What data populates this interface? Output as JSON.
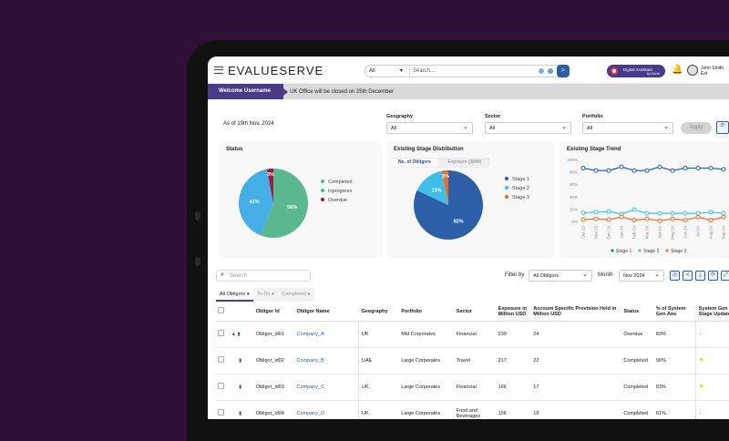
{
  "header": {
    "logo": "EVALUESERVE",
    "search_scope": "All",
    "search_placeholder": "Search...",
    "assistant_label": "Digital Assistant",
    "assistant_sub": "by Genie",
    "user_name": "John Smith",
    "user_sub": "Ext"
  },
  "banner": {
    "welcome": "Welcome Username",
    "notice": "UK Office will be closed on 25th December"
  },
  "filters": {
    "as_of": "As of 19th Nov, 2024",
    "geography_label": "Geography",
    "geography": "All",
    "sector_label": "Sector",
    "sector": "All",
    "portfolio_label": "Portfolio",
    "portfolio": "All",
    "apply": "Apply"
  },
  "colors": {
    "completed": "#5cb88f",
    "inprogress": "#45b0e5",
    "overdue": "#a3173f",
    "stage1": "#2d5fa8",
    "stage2": "#3dbfe8",
    "stage3": "#f06a25"
  },
  "chart_data": [
    {
      "type": "pie",
      "title": "Status",
      "labels": [
        "Completed",
        "Inprogress",
        "Overdue"
      ],
      "values": [
        56,
        41,
        3
      ]
    },
    {
      "type": "pie",
      "title": "Existing Stage Distribution",
      "toggle": [
        "No. of Obligors",
        "Exposure ($MM)"
      ],
      "labels": [
        "Stage 1",
        "Stage 2",
        "Stage 3"
      ],
      "values": [
        82,
        15,
        3
      ]
    },
    {
      "type": "line",
      "title": "Existing Stage Trend",
      "x": [
        "Oct-23",
        "Nov-23",
        "Dec-23",
        "Jan-24",
        "Feb-24",
        "Mar-24",
        "Apr-24",
        "May-24",
        "Jun-24",
        "Jul-24",
        "Aug-24",
        "Sep-24"
      ],
      "yticks": [
        "0%",
        "20%",
        "40%",
        "60%",
        "80%",
        "100%"
      ],
      "ylim": [
        0,
        100
      ],
      "series": [
        {
          "name": "Stage 1",
          "values": [
            86,
            82,
            82,
            88,
            82,
            82,
            88,
            82,
            86,
            86,
            86,
            84
          ]
        },
        {
          "name": "Stage 2",
          "values": [
            14,
            15,
            16,
            12,
            19,
            13,
            13,
            13,
            13,
            13,
            15,
            13
          ]
        },
        {
          "name": "Stage 3",
          "values": [
            3,
            4,
            3,
            7,
            2,
            4,
            1,
            4,
            2,
            7,
            2,
            7
          ]
        }
      ]
    }
  ],
  "toolbar": {
    "search_placeholder": "Search",
    "filter_label": "Filter by",
    "filter_value": "All Obligors",
    "month_label": "Month",
    "month_value": "Nov 2024"
  },
  "tabs": [
    "All Obligors",
    "To Do",
    "Completed"
  ],
  "table": {
    "headers": [
      "Obligor Id",
      "Obligor Name",
      "Geography",
      "Portfolio",
      "Sector",
      "Exposure in Million USD",
      "Account Specific Provision Held in Million USD",
      "Status",
      "% of System Gen Ans",
      "System Gen Stage Update"
    ],
    "rows": [
      {
        "id": "Obligor_id01",
        "name": "Company_A",
        "geo": "UK",
        "portfolio": "Mid Corporates",
        "sector": "Financial",
        "exposure": "239",
        "provision": "24",
        "status": "Overdue",
        "pct": "83%",
        "update": "-",
        "warn": true,
        "flag": false
      },
      {
        "id": "Obligor_id02",
        "name": "Company_B",
        "geo": "UAE",
        "portfolio": "Large Corporates",
        "sector": "Travel",
        "exposure": "217",
        "provision": "22",
        "status": "Completed",
        "pct": "90%",
        "update": "",
        "warn": false,
        "flag": true
      },
      {
        "id": "Obligor_id03",
        "name": "Company_C",
        "geo": "UK",
        "portfolio": "Large Corporates",
        "sector": "Financial",
        "exposure": "166",
        "provision": "17",
        "status": "Completed",
        "pct": "83%",
        "update": "",
        "warn": false,
        "flag": true
      },
      {
        "id": "Obligor_id04",
        "name": "Company_D",
        "geo": "UK",
        "portfolio": "Large Corporates",
        "sector": "Food and Beverages",
        "exposure": "156",
        "provision": "16",
        "status": "Completed",
        "pct": "61%",
        "update": "-",
        "warn": false,
        "flag": false
      }
    ]
  }
}
